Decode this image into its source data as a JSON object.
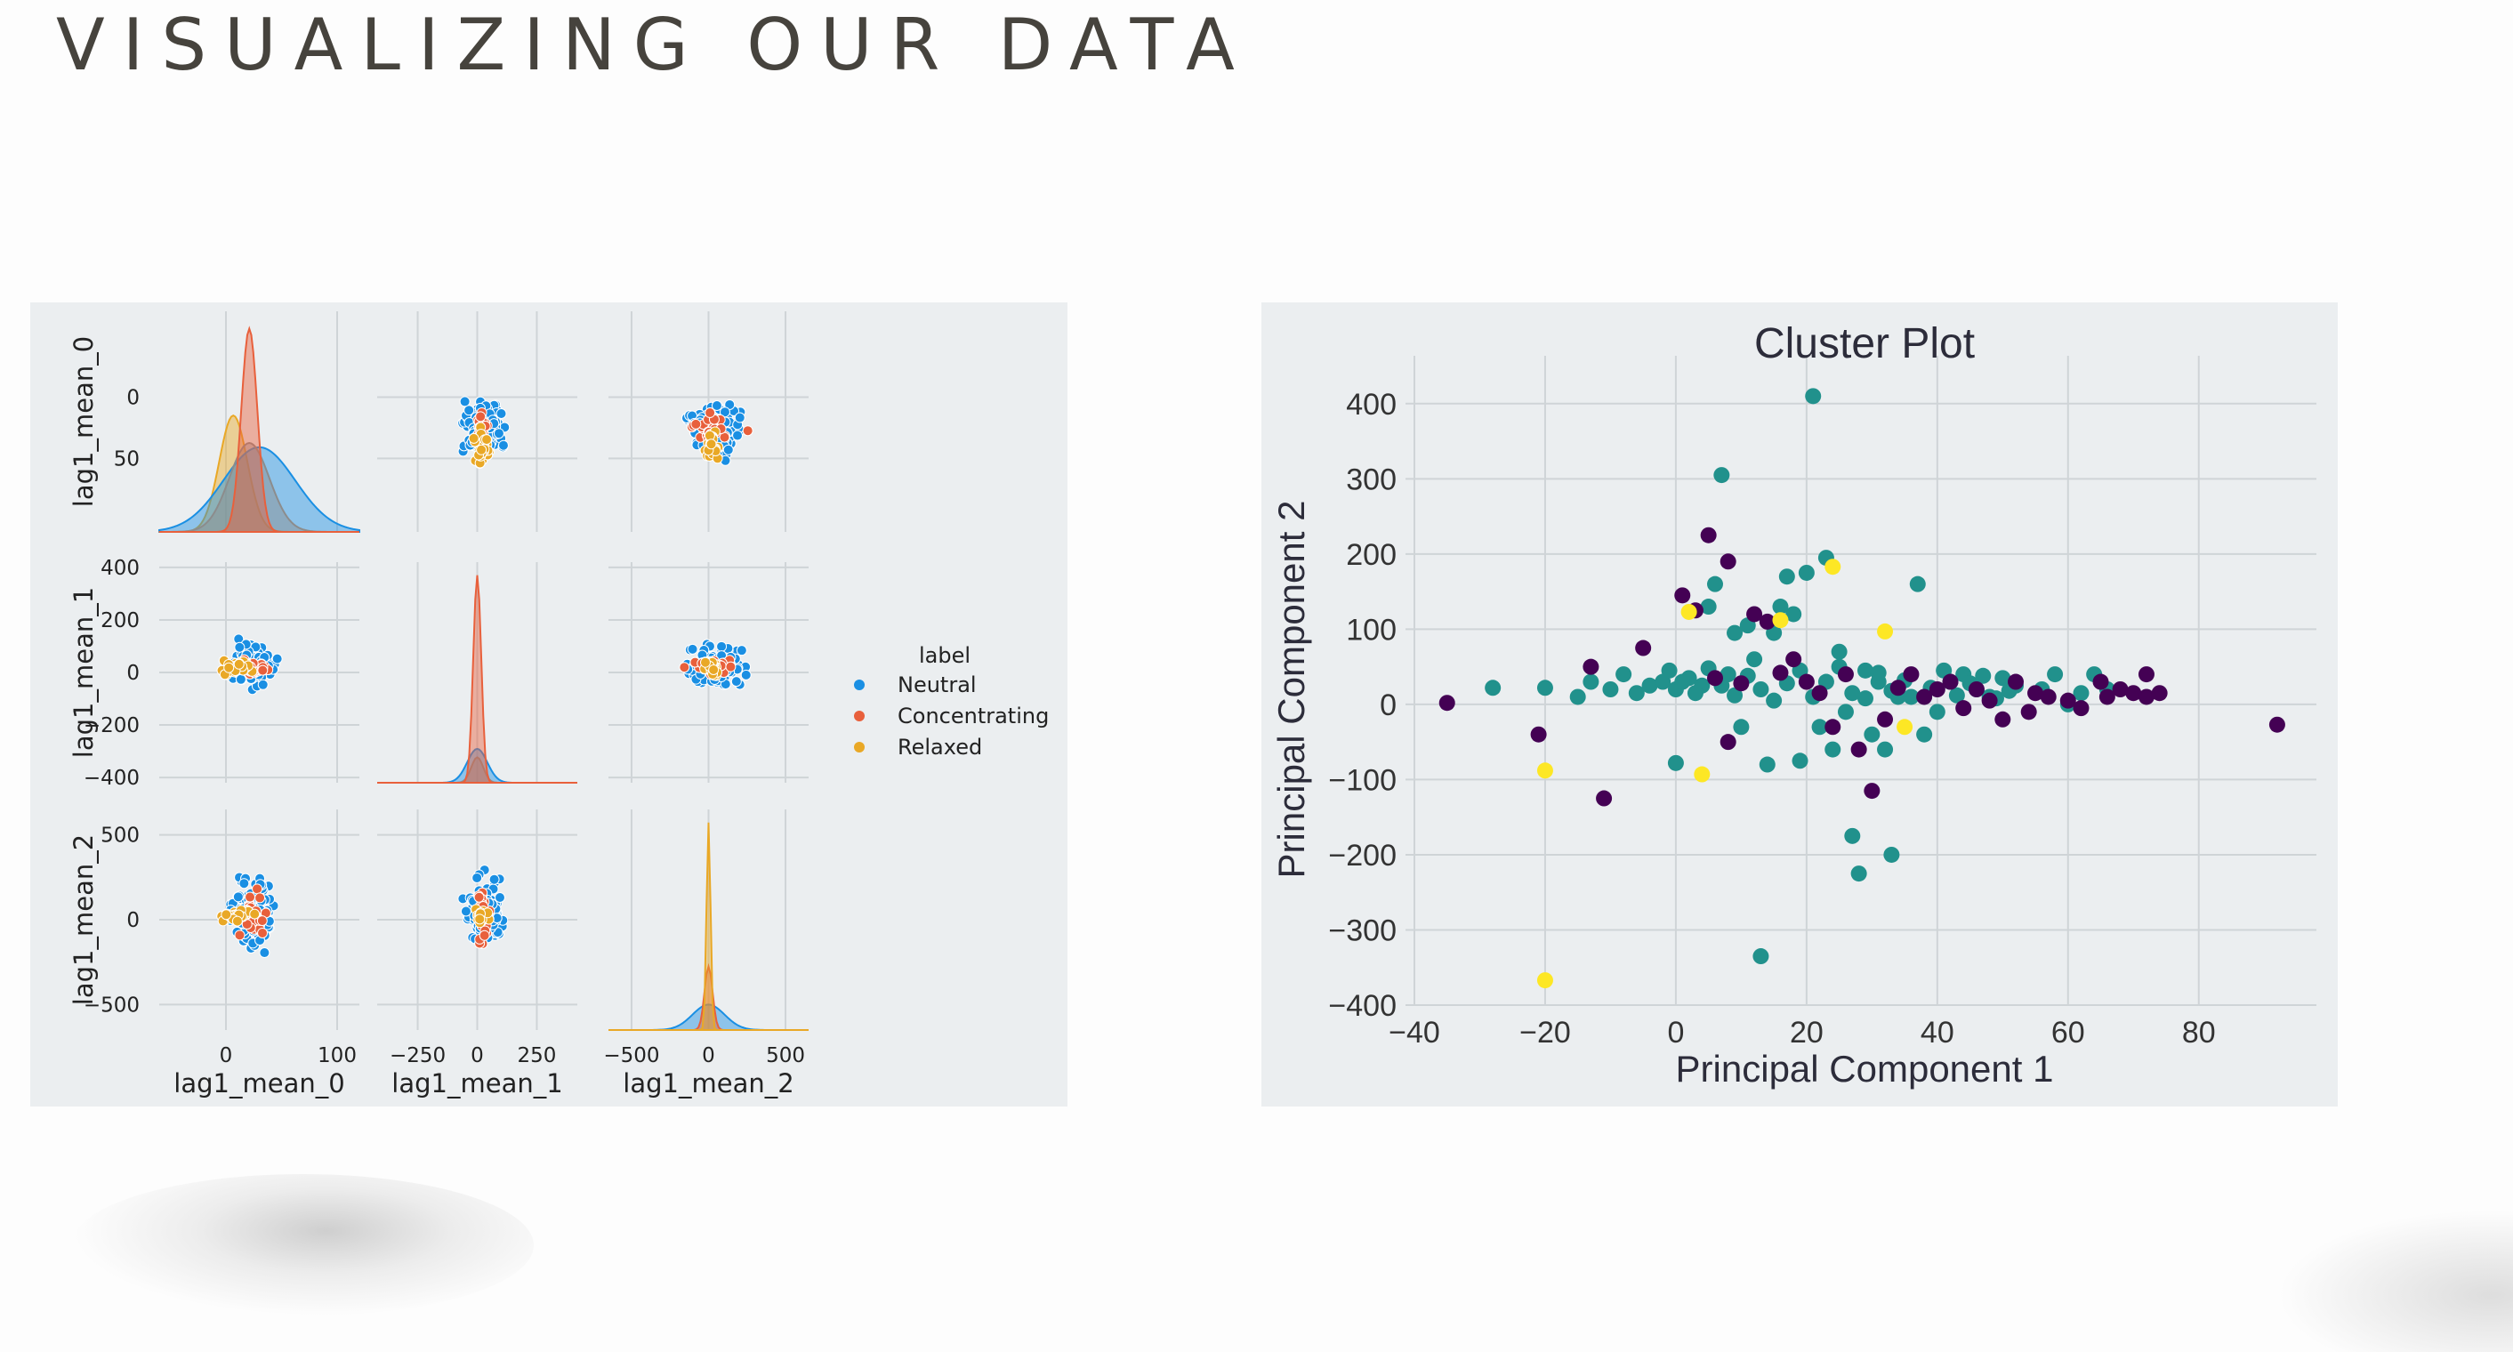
{
  "slide": {
    "title": "VISUALIZING OUR DATA"
  },
  "colors": {
    "background": "#fdfdfd",
    "panel": "#ebeef0",
    "grid": "#cfd4d7",
    "neutral": "#1a8fe3",
    "concentrating": "#e8603c",
    "relaxed": "#e9a826",
    "kde_overlap": "#8c8c8c",
    "cluster_0": "#440154",
    "cluster_1": "#21918c",
    "cluster_2": "#fde725"
  },
  "chart_data": [
    {
      "type": "scatter",
      "subtype": "pairplot",
      "variables": [
        "lag1_mean_0",
        "lag1_mean_1",
        "lag1_mean_2"
      ],
      "legend": {
        "title": "label",
        "entries": [
          "Neutral",
          "Concentrating",
          "Relaxed"
        ],
        "placement": "right"
      },
      "axes": {
        "lag1_mean_0": {
          "range": [
            -60,
            120
          ],
          "ticks": [
            0,
            100
          ],
          "row_ticks": [
            0,
            50
          ]
        },
        "lag1_mean_1": {
          "range": [
            -420,
            420
          ],
          "ticks": [
            -250,
            0,
            250
          ],
          "row_ticks": [
            400,
            200,
            0,
            -200,
            -400
          ]
        },
        "lag1_mean_2": {
          "range": [
            -650,
            650
          ],
          "ticks": [
            -500,
            0,
            500
          ],
          "row_ticks": [
            500,
            0,
            -500
          ]
        }
      },
      "tick_labels": {
        "x": {
          "lag1_mean_0": [
            "0",
            "100"
          ],
          "lag1_mean_1": [
            "−250",
            "0",
            "250"
          ],
          "lag1_mean_2": [
            "−500",
            "0",
            "500"
          ]
        },
        "y": {
          "lag1_mean_0": [
            "50",
            "0"
          ],
          "lag1_mean_1": [
            "400",
            "200",
            "0",
            "−200",
            "−400"
          ],
          "lag1_mean_2": [
            "500",
            "0",
            "−500"
          ]
        }
      },
      "diagonal": "kde",
      "grid": true
    },
    {
      "type": "scatter",
      "title": "Cluster Plot",
      "xlabel": "Principal Component 1",
      "ylabel": "Principal Component 2",
      "xlim": [
        -40,
        98
      ],
      "ylim": [
        -400,
        440
      ],
      "xticks": [
        -40,
        -20,
        0,
        20,
        40,
        60,
        80
      ],
      "yticks": [
        400,
        300,
        200,
        100,
        0,
        -100,
        -200,
        -300,
        -400
      ],
      "xtick_labels": [
        "−40",
        "−20",
        "0",
        "20",
        "40",
        "60",
        "80"
      ],
      "ytick_labels": [
        "400",
        "300",
        "200",
        "100",
        "0",
        "−100",
        "−200",
        "−300",
        "−400"
      ],
      "grid": true,
      "series": [
        {
          "points": [
            [
              -35,
              2
            ],
            [
              -21,
              -40
            ],
            [
              -13,
              50
            ],
            [
              -11,
              -125
            ],
            [
              -5,
              75
            ],
            [
              1,
              145
            ],
            [
              3,
              125
            ],
            [
              5,
              225
            ],
            [
              8,
              190
            ],
            [
              8,
              -50
            ],
            [
              12,
              120
            ],
            [
              14,
              110
            ],
            [
              18,
              60
            ],
            [
              24,
              -30
            ],
            [
              28,
              -60
            ],
            [
              30,
              -115
            ],
            [
              32,
              -20
            ],
            [
              40,
              20
            ],
            [
              44,
              -5
            ],
            [
              50,
              -20
            ],
            [
              55,
              15
            ],
            [
              57,
              10
            ],
            [
              60,
              5
            ],
            [
              62,
              -5
            ],
            [
              65,
              30
            ],
            [
              66,
              10
            ],
            [
              68,
              20
            ],
            [
              70,
              15
            ],
            [
              72,
              40
            ],
            [
              72,
              10
            ],
            [
              74,
              15
            ],
            [
              92,
              -27
            ],
            [
              6,
              35
            ],
            [
              10,
              28
            ],
            [
              16,
              42
            ],
            [
              20,
              30
            ],
            [
              22,
              15
            ],
            [
              26,
              40
            ],
            [
              34,
              22
            ],
            [
              36,
              40
            ],
            [
              38,
              10
            ],
            [
              42,
              30
            ],
            [
              46,
              20
            ],
            [
              48,
              5
            ],
            [
              52,
              30
            ],
            [
              54,
              -10
            ]
          ]
        },
        {
          "points": [
            [
              -28,
              22
            ],
            [
              -20,
              22
            ],
            [
              -15,
              10
            ],
            [
              -13,
              30
            ],
            [
              -10,
              20
            ],
            [
              -8,
              40
            ],
            [
              -6,
              15
            ],
            [
              -4,
              25
            ],
            [
              -2,
              30
            ],
            [
              0,
              20
            ],
            [
              0,
              -78
            ],
            [
              2,
              35
            ],
            [
              4,
              25
            ],
            [
              5,
              130
            ],
            [
              6,
              160
            ],
            [
              7,
              305
            ],
            [
              8,
              40
            ],
            [
              9,
              95
            ],
            [
              10,
              -30
            ],
            [
              11,
              105
            ],
            [
              12,
              60
            ],
            [
              13,
              -335
            ],
            [
              14,
              -80
            ],
            [
              15,
              95
            ],
            [
              16,
              130
            ],
            [
              17,
              170
            ],
            [
              18,
              120
            ],
            [
              19,
              -75
            ],
            [
              20,
              175
            ],
            [
              21,
              410
            ],
            [
              22,
              -30
            ],
            [
              23,
              195
            ],
            [
              24,
              -60
            ],
            [
              25,
              70
            ],
            [
              26,
              -10
            ],
            [
              27,
              -175
            ],
            [
              28,
              -225
            ],
            [
              29,
              45
            ],
            [
              30,
              -40
            ],
            [
              31,
              30
            ],
            [
              32,
              -60
            ],
            [
              33,
              -200
            ],
            [
              34,
              10
            ],
            [
              36,
              10
            ],
            [
              37,
              160
            ],
            [
              38,
              -40
            ],
            [
              40,
              -10
            ],
            [
              42,
              30
            ],
            [
              44,
              40
            ],
            [
              46,
              20
            ],
            [
              48,
              10
            ],
            [
              50,
              35
            ],
            [
              52,
              25
            ],
            [
              56,
              20
            ],
            [
              58,
              40
            ],
            [
              60,
              0
            ],
            [
              62,
              15
            ],
            [
              64,
              40
            ],
            [
              66,
              20
            ],
            [
              -1,
              45
            ],
            [
              1,
              30
            ],
            [
              3,
              15
            ],
            [
              5,
              48
            ],
            [
              7,
              25
            ],
            [
              9,
              12
            ],
            [
              11,
              38
            ],
            [
              13,
              20
            ],
            [
              15,
              5
            ],
            [
              17,
              28
            ],
            [
              19,
              45
            ],
            [
              21,
              10
            ],
            [
              23,
              30
            ],
            [
              25,
              50
            ],
            [
              27,
              15
            ],
            [
              29,
              8
            ],
            [
              31,
              42
            ],
            [
              33,
              18
            ],
            [
              35,
              32
            ],
            [
              39,
              22
            ],
            [
              41,
              45
            ],
            [
              43,
              12
            ],
            [
              45,
              28
            ],
            [
              47,
              38
            ],
            [
              49,
              8
            ],
            [
              51,
              18
            ]
          ]
        },
        {
          "points": [
            [
              -20,
              -88
            ],
            [
              -20,
              -367
            ],
            [
              2,
              123
            ],
            [
              4,
              -93
            ],
            [
              16,
              112
            ],
            [
              24,
              183
            ],
            [
              32,
              97
            ],
            [
              35,
              -30
            ]
          ]
        }
      ]
    }
  ]
}
